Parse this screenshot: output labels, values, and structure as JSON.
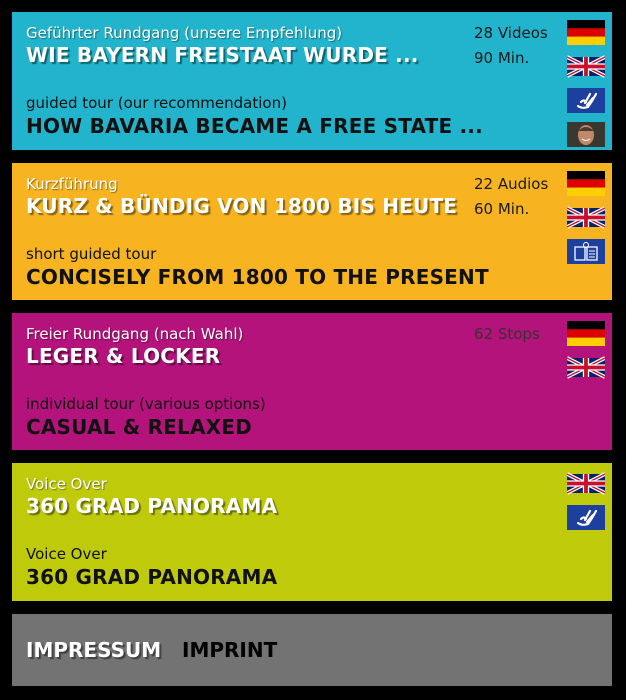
{
  "colors": {
    "guided": "#22b4cc",
    "short": "#f7b420",
    "free": "#b3137b",
    "voice": "#bfcb0a",
    "imprint": "#737373"
  },
  "tours": [
    {
      "de_sub": "Geführter Rundgang (unsere Empfehlung)",
      "de_title": "WIE BAYERN FREISTAAT WURDE ...",
      "en_sub": "guided tour (our recommendation)",
      "en_title": "HOW BAVARIA BECAME A FREE STATE ...",
      "meta1": "28 Videos",
      "meta2": "90 Min.",
      "icons": [
        "flag-germany-icon",
        "flag-uk-icon",
        "sign-language-icon",
        "presenter-photo-icon"
      ]
    },
    {
      "de_sub": "Kurzführung",
      "de_title": "KURZ & BÜNDIG VON 1800 BIS HEUTE",
      "en_sub": "short guided tour",
      "en_title": "CONCISELY FROM 1800 TO THE PRESENT",
      "meta1": "22 Audios",
      "meta2": "60 Min.",
      "icons": [
        "flag-germany-icon",
        "flag-uk-icon",
        "easy-language-icon"
      ]
    },
    {
      "de_sub": "Freier Rundgang (nach Wahl)",
      "de_title": "LEGER & LOCKER",
      "en_sub": "individual tour (various options)",
      "en_title": "CASUAL & RELAXED",
      "meta1": "62 Stops",
      "icons": [
        "flag-germany-icon",
        "flag-uk-icon"
      ]
    },
    {
      "de_sub": "Voice Over",
      "de_title": "360 GRAD PANORAMA",
      "en_sub": "Voice Over",
      "en_title": "360 GRAD PANORAMA",
      "icons": [
        "flag-uk-icon",
        "sign-language-icon"
      ]
    }
  ],
  "imprint": {
    "de": "IMPRESSUM",
    "en": "IMPRINT"
  }
}
